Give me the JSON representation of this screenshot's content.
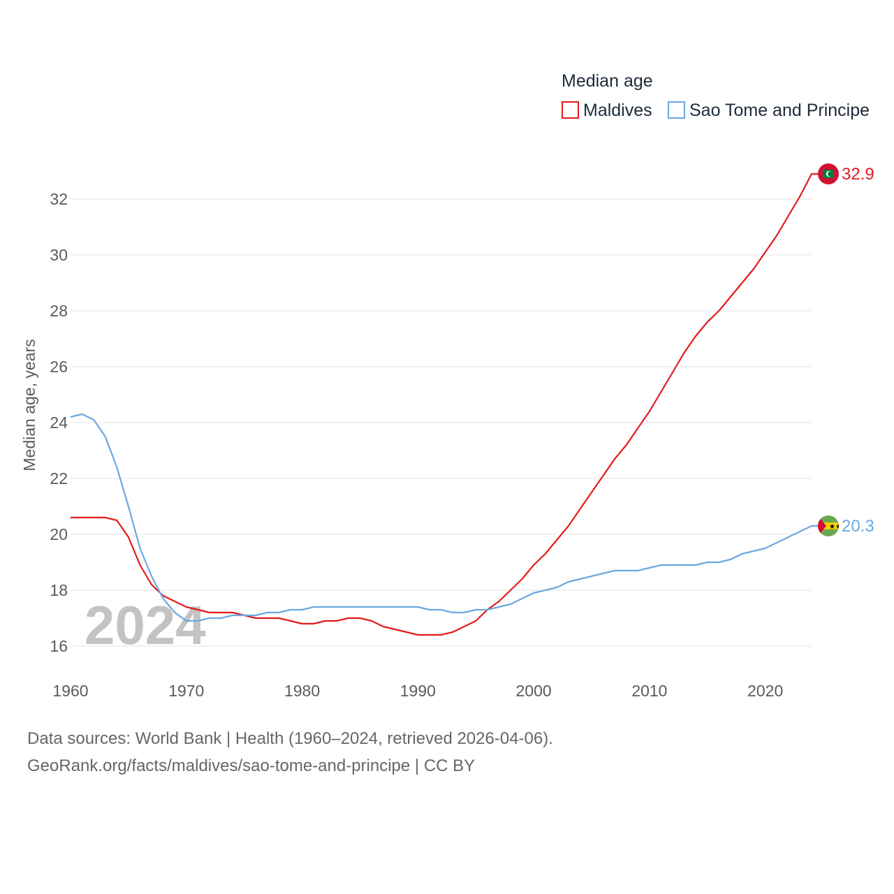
{
  "chart_data": {
    "type": "line",
    "legend_title": "Median age",
    "ylabel": "Median age, years",
    "xlabel": "",
    "ylim": [
      15,
      34
    ],
    "xlim": [
      1960,
      2024
    ],
    "yticks": [
      16,
      18,
      20,
      22,
      24,
      26,
      28,
      30,
      32
    ],
    "xticks": [
      1960,
      1970,
      1980,
      1990,
      2000,
      2010,
      2020
    ],
    "year_label": "2024",
    "series": [
      {
        "name": "Maldives",
        "color": "#e31a1c",
        "end_label": "32.9",
        "flag": "maldives-flag",
        "x": [
          1960,
          1961,
          1962,
          1963,
          1964,
          1965,
          1966,
          1967,
          1968,
          1969,
          1970,
          1971,
          1972,
          1973,
          1974,
          1975,
          1976,
          1977,
          1978,
          1979,
          1980,
          1981,
          1982,
          1983,
          1984,
          1985,
          1986,
          1987,
          1988,
          1989,
          1990,
          1991,
          1992,
          1993,
          1994,
          1995,
          1996,
          1997,
          1998,
          1999,
          2000,
          2001,
          2002,
          2003,
          2004,
          2005,
          2006,
          2007,
          2008,
          2009,
          2010,
          2011,
          2012,
          2013,
          2014,
          2015,
          2016,
          2017,
          2018,
          2019,
          2020,
          2021,
          2022,
          2023,
          2024
        ],
        "values": [
          20.6,
          20.6,
          20.6,
          20.6,
          20.5,
          19.9,
          18.9,
          18.2,
          17.8,
          17.6,
          17.4,
          17.3,
          17.2,
          17.2,
          17.2,
          17.1,
          17.0,
          17.0,
          17.0,
          16.9,
          16.8,
          16.8,
          16.9,
          16.9,
          17.0,
          17.0,
          16.9,
          16.7,
          16.6,
          16.5,
          16.4,
          16.4,
          16.4,
          16.5,
          16.7,
          16.9,
          17.3,
          17.6,
          18.0,
          18.4,
          18.9,
          19.3,
          19.8,
          20.3,
          20.9,
          21.5,
          22.1,
          22.7,
          23.2,
          23.8,
          24.4,
          25.1,
          25.8,
          26.5,
          27.1,
          27.6,
          28.0,
          28.5,
          29.0,
          29.5,
          30.1,
          30.7,
          31.4,
          32.1,
          32.9
        ]
      },
      {
        "name": "Sao Tome and Principe",
        "color": "#6aa8e0",
        "end_label": "20.3",
        "flag": "sao-tome-and-principe-flag",
        "x": [
          1960,
          1961,
          1962,
          1963,
          1964,
          1965,
          1966,
          1967,
          1968,
          1969,
          1970,
          1971,
          1972,
          1973,
          1974,
          1975,
          1976,
          1977,
          1978,
          1979,
          1980,
          1981,
          1982,
          1983,
          1984,
          1985,
          1986,
          1987,
          1988,
          1989,
          1990,
          1991,
          1992,
          1993,
          1994,
          1995,
          1996,
          1997,
          1998,
          1999,
          2000,
          2001,
          2002,
          2003,
          2004,
          2005,
          2006,
          2007,
          2008,
          2009,
          2010,
          2011,
          2012,
          2013,
          2014,
          2015,
          2016,
          2017,
          2018,
          2019,
          2020,
          2021,
          2022,
          2023,
          2024
        ],
        "values": [
          24.2,
          24.3,
          24.1,
          23.5,
          22.4,
          21.0,
          19.5,
          18.5,
          17.7,
          17.2,
          16.9,
          16.9,
          17.0,
          17.0,
          17.1,
          17.1,
          17.1,
          17.2,
          17.2,
          17.3,
          17.3,
          17.4,
          17.4,
          17.4,
          17.4,
          17.4,
          17.4,
          17.4,
          17.4,
          17.4,
          17.4,
          17.3,
          17.3,
          17.2,
          17.2,
          17.3,
          17.3,
          17.4,
          17.5,
          17.7,
          17.9,
          18.0,
          18.1,
          18.3,
          18.4,
          18.5,
          18.6,
          18.7,
          18.7,
          18.7,
          18.8,
          18.9,
          18.9,
          18.9,
          18.9,
          19.0,
          19.0,
          19.1,
          19.3,
          19.4,
          19.5,
          19.7,
          19.9,
          20.1,
          20.3
        ]
      }
    ]
  },
  "footer": {
    "line1": "Data sources: World Bank | Health (1960–2024, retrieved 2026-04-06).",
    "line2": "GeoRank.org/facts/maldives/sao-tome-and-principe | CC BY"
  }
}
